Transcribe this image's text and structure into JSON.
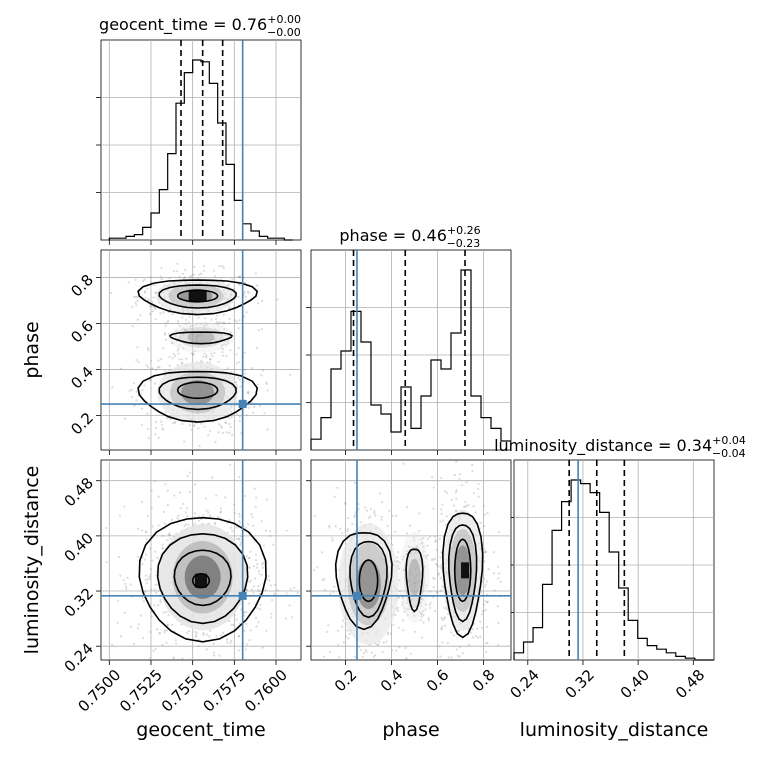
{
  "chart_data": {
    "type": "corner",
    "params": [
      "geocent_time",
      "phase",
      "luminosity_distance"
    ],
    "truths": [
      0.758,
      0.25,
      0.313
    ],
    "truth_color": "#4682b4",
    "ranges": [
      [
        0.7495,
        0.7615
      ],
      [
        0.05,
        0.92
      ],
      [
        0.22,
        0.51
      ]
    ],
    "ticks": [
      {
        "values": [
          0.75,
          0.7525,
          0.755,
          0.7575,
          0.76
        ],
        "labels": [
          "0.7500",
          "0.7525",
          "0.7550",
          "0.7575",
          "0.7600"
        ]
      },
      {
        "values": [
          0.2,
          0.4,
          0.6,
          0.8
        ],
        "labels": [
          "0.2",
          "0.4",
          "0.6",
          "0.8"
        ]
      },
      {
        "values": [
          0.24,
          0.32,
          0.4,
          0.48
        ],
        "labels": [
          "0.24",
          "0.32",
          "0.40",
          "0.48"
        ]
      }
    ],
    "titles": [
      {
        "label": "geocent_time = 0.76",
        "sup": "+0.00",
        "sub": "−0.00"
      },
      {
        "label": "phase = 0.46",
        "sup": "+0.26",
        "sub": "−0.23"
      },
      {
        "label": "luminosity_distance = 0.34",
        "sup": "+0.04",
        "sub": "−0.04"
      }
    ],
    "quantiles": [
      [
        0.7543,
        0.7556,
        0.7568
      ],
      [
        0.235,
        0.46,
        0.72
      ],
      [
        0.3,
        0.34,
        0.38
      ]
    ],
    "histograms": [
      {
        "edges_start": 0.75,
        "bin_width": 0.0005,
        "counts": [
          0.01,
          0.01,
          0.02,
          0.03,
          0.07,
          0.15,
          0.28,
          0.48,
          0.76,
          0.93,
          1.0,
          0.99,
          0.87,
          0.65,
          0.42,
          0.22,
          0.09,
          0.05,
          0.02,
          0.01,
          0.01,
          0.0
        ]
      },
      {
        "edges_start": 0.05,
        "bin_width": 0.0435,
        "counts": [
          0.06,
          0.18,
          0.45,
          0.55,
          0.77,
          0.6,
          0.25,
          0.2,
          0.1,
          0.35,
          0.12,
          0.3,
          0.5,
          0.45,
          0.65,
          1.0,
          0.3,
          0.18,
          0.12,
          0.05
        ]
      },
      {
        "edges_start": 0.22,
        "bin_width": 0.0138,
        "counts": [
          0.04,
          0.1,
          0.18,
          0.42,
          0.72,
          0.88,
          1.0,
          0.98,
          0.93,
          0.82,
          0.6,
          0.4,
          0.22,
          0.12,
          0.08,
          0.06,
          0.04,
          0.02,
          0.01,
          0.0,
          0.0
        ]
      }
    ],
    "xlabels": [
      "geocent_time",
      "phase",
      "luminosity_distance"
    ],
    "ylabels": [
      "",
      "phase",
      "luminosity_distance"
    ],
    "grid": true
  }
}
